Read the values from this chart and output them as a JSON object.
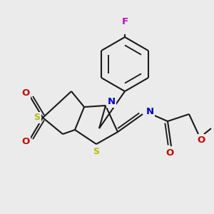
{
  "bg_color": "#ebebeb",
  "bond_color": "#1a1a1a",
  "bond_width": 1.5,
  "atom_colors": {
    "S": "#bbbb00",
    "N": "#0000cc",
    "O": "#cc0000",
    "F": "#cc00cc",
    "C": "#1a1a1a"
  },
  "font_size_atom": 9.5,
  "font_size_small": 8.0,
  "scale": 1.0
}
